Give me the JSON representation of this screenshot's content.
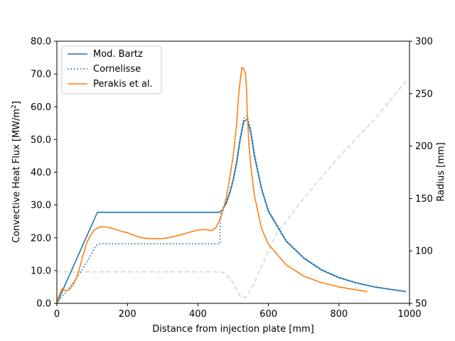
{
  "chart_data": {
    "type": "line",
    "xlabel": "Distance from injection plate [mm]",
    "ylabel_left": "Convective Heat Flux [MW/m",
    "ylabel_left_sup": "2",
    "ylabel_left_end": "]",
    "ylabel_right": "Radius [mm]",
    "xlim": [
      0,
      1000
    ],
    "ylim_left": [
      0,
      80
    ],
    "ylim_right": [
      50,
      300
    ],
    "x_ticks": [
      0,
      200,
      400,
      600,
      800,
      1000
    ],
    "x_tick_labels": [
      "0",
      "200",
      "400",
      "600",
      "800",
      "1000"
    ],
    "y_left_ticks": [
      0,
      10,
      20,
      30,
      40,
      50,
      60,
      70,
      80
    ],
    "y_left_tick_labels": [
      "0.0",
      "10.0",
      "20.0",
      "30.0",
      "40.0",
      "50.0",
      "60.0",
      "70.0",
      "80.0"
    ],
    "y_right_ticks": [
      50,
      100,
      150,
      200,
      250,
      300
    ],
    "y_right_tick_labels": [
      "50",
      "100",
      "150",
      "200",
      "250",
      "300"
    ],
    "legend_position": "top-left",
    "series": [
      {
        "name": "Mod. Bartz",
        "axis": "left",
        "color": "#1f77b4",
        "style": "solid",
        "x": [
          0,
          115,
          120,
          200,
          300,
          400,
          460,
          470,
          480,
          490,
          500,
          510,
          520,
          530,
          540,
          550,
          560,
          580,
          600,
          650,
          700,
          750,
          800,
          850,
          900,
          950,
          990
        ],
        "y": [
          0,
          27.8,
          27.8,
          27.8,
          27.8,
          27.8,
          27.8,
          28.5,
          30.5,
          33.5,
          37.5,
          43,
          50,
          55.5,
          56.2,
          52,
          45,
          35,
          28,
          19,
          13.8,
          10.2,
          7.8,
          6.2,
          5.0,
          4.2,
          3.6
        ]
      },
      {
        "name": "Cornelisse",
        "axis": "left",
        "color": "#1f77b4",
        "style": "dotted",
        "x": [
          0,
          10,
          30,
          50,
          70,
          90,
          110,
          120,
          200,
          300,
          400,
          462,
          464,
          470,
          480,
          490,
          500,
          510,
          520,
          530,
          540,
          550,
          560,
          580,
          600,
          650,
          700,
          750,
          800,
          850,
          900,
          950,
          990
        ],
        "y": [
          0,
          1.5,
          4,
          7,
          10,
          13.5,
          17.5,
          18.2,
          18.2,
          18.2,
          18.2,
          18.2,
          27,
          29,
          31,
          34,
          38,
          44,
          51,
          56.5,
          57.2,
          53,
          46,
          35.5,
          28.5,
          19.2,
          14,
          10.4,
          8,
          6.3,
          5.1,
          4.2,
          3.6
        ]
      },
      {
        "name": "Perakis et al.",
        "axis": "left",
        "color": "#ff7f0e",
        "style": "solid",
        "x": [
          0,
          5,
          15,
          25,
          35,
          45,
          55,
          65,
          75,
          85,
          95,
          105,
          115,
          125,
          140,
          160,
          180,
          200,
          220,
          240,
          260,
          280,
          300,
          320,
          340,
          360,
          380,
          400,
          420,
          440,
          450,
          460,
          470,
          480,
          490,
          500,
          510,
          515,
          520,
          525,
          530,
          535,
          538,
          540,
          545,
          550,
          560,
          580,
          600,
          650,
          700,
          750,
          800,
          850,
          880
        ],
        "y": [
          0,
          2,
          4.5,
          3.8,
          4.2,
          5.5,
          7.5,
          11,
          15,
          18.5,
          20.8,
          22.2,
          23,
          23.4,
          23.3,
          22.8,
          22.1,
          21.5,
          20.7,
          20.0,
          19.8,
          19.7,
          19.8,
          20.1,
          20.6,
          21.2,
          21.8,
          22.4,
          22.5,
          22.2,
          23,
          25,
          28,
          32,
          38,
          45,
          55,
          63,
          68,
          72,
          71.5,
          70,
          65,
          58,
          48,
          42,
          33,
          23,
          18,
          11.8,
          8.3,
          6.3,
          5.0,
          4.1,
          3.6
        ]
      },
      {
        "name": "",
        "axis": "right",
        "color": "#d3d3d3",
        "style": "dashed",
        "x": [
          0,
          460,
          470,
          480,
          490,
          500,
          510,
          520,
          530,
          540,
          550,
          560,
          580,
          620,
          700,
          800,
          900,
          990
        ],
        "y": [
          80,
          80,
          79.5,
          77.5,
          74,
          69.5,
          63,
          57,
          55,
          57,
          63,
          70,
          85,
          115,
          150,
          190,
          225,
          262
        ]
      }
    ]
  }
}
